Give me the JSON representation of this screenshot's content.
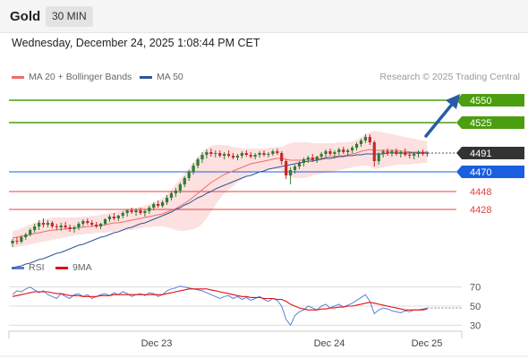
{
  "header": {
    "instrument": "Gold",
    "timeframe": "30 MIN"
  },
  "datetime": "Wednesday, December 24, 2025 1:08:44 PM CET",
  "legend": {
    "ma20_label": "MA 20 + Bollinger Bands",
    "ma50_label": "MA 50",
    "credit": "Research © 2025 Trading Central"
  },
  "rsi_legend": {
    "rsi_label": "RSI",
    "ma_label": "9MA"
  },
  "colors": {
    "up_candle": "#2e7d32",
    "down_candle": "#c62828",
    "ma20": "#f26b6b",
    "ma50": "#2f5597",
    "band_fill": "#fde0e0",
    "resistance": "#4a9e0f",
    "pivot": "#1a5fe0",
    "support": "#e84040",
    "last_price": "#333333",
    "rsi": "#5b7fd6",
    "rsi_ma": "#e01010",
    "arrow": "#2a5aa8"
  },
  "chart_data": [
    {
      "type": "candlestick",
      "title": "Gold 30 MIN",
      "x_ticks": [
        "Dec 23",
        "Dec 24",
        "Dec 25"
      ],
      "ylim": [
        4380,
        4570
      ],
      "candles": [
        [
          4390,
          4395,
          4386,
          4393
        ],
        [
          4393,
          4397,
          4389,
          4392
        ],
        [
          4392,
          4399,
          4390,
          4397
        ],
        [
          4397,
          4402,
          4394,
          4400
        ],
        [
          4400,
          4407,
          4398,
          4405
        ],
        [
          4405,
          4412,
          4402,
          4409
        ],
        [
          4409,
          4416,
          4405,
          4413
        ],
        [
          4413,
          4418,
          4408,
          4411
        ],
        [
          4411,
          4416,
          4408,
          4413
        ],
        [
          4413,
          4415,
          4407,
          4409
        ],
        [
          4409,
          4412,
          4405,
          4408
        ],
        [
          4408,
          4413,
          4404,
          4410
        ],
        [
          4410,
          4414,
          4406,
          4408
        ],
        [
          4408,
          4411,
          4403,
          4406
        ],
        [
          4406,
          4410,
          4402,
          4408
        ],
        [
          4408,
          4414,
          4405,
          4412
        ],
        [
          4412,
          4417,
          4409,
          4415
        ],
        [
          4415,
          4418,
          4411,
          4413
        ],
        [
          4413,
          4416,
          4409,
          4411
        ],
        [
          4411,
          4414,
          4407,
          4409
        ],
        [
          4409,
          4413,
          4406,
          4412
        ],
        [
          4412,
          4418,
          4410,
          4417
        ],
        [
          4417,
          4422,
          4414,
          4420
        ],
        [
          4420,
          4424,
          4416,
          4418
        ],
        [
          4418,
          4422,
          4415,
          4421
        ],
        [
          4421,
          4426,
          4418,
          4424
        ],
        [
          4424,
          4428,
          4420,
          4427
        ],
        [
          4427,
          4430,
          4423,
          4425
        ],
        [
          4425,
          4429,
          4421,
          4427
        ],
        [
          4427,
          4430,
          4422,
          4424
        ],
        [
          4424,
          4428,
          4420,
          4426
        ],
        [
          4426,
          4432,
          4423,
          4430
        ],
        [
          4430,
          4436,
          4427,
          4434
        ],
        [
          4434,
          4438,
          4430,
          4432
        ],
        [
          4432,
          4438,
          4430,
          4436
        ],
        [
          4436,
          4444,
          4433,
          4441
        ],
        [
          4441,
          4448,
          4438,
          4446
        ],
        [
          4446,
          4452,
          4442,
          4449
        ],
        [
          4449,
          4458,
          4446,
          4456
        ],
        [
          4456,
          4465,
          4453,
          4463
        ],
        [
          4463,
          4472,
          4460,
          4470
        ],
        [
          4470,
          4480,
          4467,
          4477
        ],
        [
          4477,
          4486,
          4474,
          4484
        ],
        [
          4484,
          4492,
          4480,
          4489
        ],
        [
          4489,
          4495,
          4485,
          4492
        ],
        [
          4492,
          4496,
          4487,
          4490
        ],
        [
          4490,
          4494,
          4486,
          4491
        ],
        [
          4491,
          4494,
          4486,
          4488
        ],
        [
          4488,
          4492,
          4484,
          4490
        ],
        [
          4490,
          4494,
          4486,
          4488
        ],
        [
          4488,
          4491,
          4484,
          4486
        ],
        [
          4486,
          4490,
          4483,
          4488
        ],
        [
          4488,
          4493,
          4485,
          4491
        ],
        [
          4491,
          4494,
          4487,
          4489
        ],
        [
          4489,
          4492,
          4485,
          4487
        ],
        [
          4487,
          4491,
          4484,
          4489
        ],
        [
          4489,
          4493,
          4486,
          4491
        ],
        [
          4491,
          4494,
          4487,
          4489
        ],
        [
          4489,
          4492,
          4486,
          4490
        ],
        [
          4490,
          4495,
          4488,
          4493
        ],
        [
          4493,
          4496,
          4489,
          4491
        ],
        [
          4491,
          4493,
          4478,
          4482
        ],
        [
          4482,
          4484,
          4462,
          4466
        ],
        [
          4466,
          4475,
          4456,
          4472
        ],
        [
          4472,
          4478,
          4468,
          4476
        ],
        [
          4476,
          4482,
          4473,
          4480
        ],
        [
          4480,
          4486,
          4476,
          4484
        ],
        [
          4484,
          4488,
          4480,
          4486
        ],
        [
          4486,
          4490,
          4481,
          4483
        ],
        [
          4483,
          4488,
          4480,
          4487
        ],
        [
          4487,
          4492,
          4484,
          4490
        ],
        [
          4490,
          4495,
          4486,
          4493
        ],
        [
          4493,
          4496,
          4488,
          4490
        ],
        [
          4490,
          4494,
          4485,
          4492
        ],
        [
          4492,
          4497,
          4489,
          4495
        ],
        [
          4495,
          4498,
          4490,
          4492
        ],
        [
          4492,
          4496,
          4488,
          4494
        ],
        [
          4494,
          4499,
          4491,
          4497
        ],
        [
          4497,
          4503,
          4494,
          4501
        ],
        [
          4501,
          4507,
          4498,
          4505
        ],
        [
          4505,
          4512,
          4502,
          4509
        ],
        [
          4509,
          4512,
          4500,
          4503
        ],
        [
          4503,
          4505,
          4476,
          4482
        ],
        [
          4482,
          4492,
          4478,
          4490
        ],
        [
          4490,
          4495,
          4486,
          4493
        ],
        [
          4493,
          4496,
          4488,
          4491
        ],
        [
          4491,
          4495,
          4487,
          4493
        ],
        [
          4493,
          4496,
          4488,
          4490
        ],
        [
          4490,
          4494,
          4486,
          4492
        ],
        [
          4492,
          4496,
          4487,
          4489
        ],
        [
          4489,
          4493,
          4485,
          4488
        ],
        [
          4488,
          4492,
          4484,
          4490
        ],
        [
          4490,
          4494,
          4486,
          4492
        ],
        [
          4492,
          4495,
          4488,
          4490
        ],
        [
          4490,
          4493,
          4487,
          4491
        ]
      ],
      "ma20": [
        4396,
        4397,
        4398,
        4399,
        4400,
        4401,
        4402,
        4403,
        4404,
        4405,
        4405,
        4406,
        4406,
        4407,
        4407,
        4408,
        4408,
        4409,
        4409,
        4410,
        4410,
        4411,
        4412,
        4413,
        4413,
        4414,
        4415,
        4416,
        4417,
        4418,
        4419,
        4420,
        4421,
        4422,
        4423,
        4425,
        4427,
        4429,
        4432,
        4435,
        4438,
        4442,
        4446,
        4450,
        4454,
        4458,
        4461,
        4464,
        4467,
        4469,
        4471,
        4473,
        4475,
        4477,
        4479,
        4480,
        4481,
        4482,
        4483,
        4484,
        4485,
        4485,
        4484,
        4483,
        4483,
        4483,
        4483,
        4484,
        4484,
        4485,
        4485,
        4486,
        4487,
        4487,
        4488,
        4488,
        4489,
        4490,
        4491,
        4493,
        4494,
        4495,
        4494,
        4494,
        4494,
        4494,
        4494,
        4494,
        4493,
        4493,
        4492,
        4492,
        4492,
        4492,
        4492
      ],
      "bb_upper": [
        4404,
        4405,
        4407,
        4409,
        4411,
        4413,
        4415,
        4417,
        4418,
        4419,
        4419,
        4419,
        4419,
        4419,
        4419,
        4419,
        4420,
        4420,
        4421,
        4421,
        4422,
        4423,
        4424,
        4425,
        4426,
        4427,
        4428,
        4429,
        4430,
        4431,
        4432,
        4434,
        4436,
        4438,
        4441,
        4445,
        4450,
        4456,
        4462,
        4468,
        4474,
        4480,
        4486,
        4492,
        4496,
        4499,
        4500,
        4500,
        4500,
        4499,
        4498,
        4497,
        4496,
        4496,
        4496,
        4496,
        4496,
        4496,
        4497,
        4497,
        4498,
        4498,
        4500,
        4502,
        4503,
        4503,
        4503,
        4503,
        4502,
        4502,
        4502,
        4502,
        4502,
        4502,
        4503,
        4503,
        4503,
        4504,
        4506,
        4509,
        4512,
        4514,
        4516,
        4515,
        4514,
        4513,
        4512,
        4511,
        4510,
        4509,
        4508,
        4507,
        4506,
        4505,
        4504
      ],
      "bb_lower": [
        4385,
        4386,
        4387,
        4388,
        4389,
        4390,
        4391,
        4392,
        4393,
        4394,
        4395,
        4396,
        4397,
        4398,
        4399,
        4400,
        4400,
        4401,
        4401,
        4402,
        4402,
        4402,
        4403,
        4403,
        4404,
        4404,
        4405,
        4405,
        4406,
        4407,
        4408,
        4408,
        4409,
        4409,
        4409,
        4408,
        4407,
        4405,
        4404,
        4404,
        4405,
        4406,
        4408,
        4412,
        4418,
        4425,
        4433,
        4440,
        4446,
        4450,
        4454,
        4458,
        4462,
        4466,
        4468,
        4470,
        4471,
        4472,
        4472,
        4473,
        4473,
        4472,
        4468,
        4464,
        4463,
        4463,
        4463,
        4464,
        4466,
        4467,
        4468,
        4469,
        4470,
        4471,
        4472,
        4473,
        4474,
        4475,
        4476,
        4477,
        4477,
        4476,
        4473,
        4474,
        4475,
        4476,
        4477,
        4478,
        4478,
        4478,
        4478,
        4479,
        4479,
        4480,
        4480
      ],
      "ma50": [
        4362,
        4364,
        4365,
        4367,
        4368,
        4370,
        4372,
        4373,
        4375,
        4377,
        4379,
        4380,
        4382,
        4384,
        4386,
        4388,
        4389,
        4391,
        4393,
        4395,
        4397,
        4398,
        4400,
        4402,
        4403,
        4405,
        4407,
        4408,
        4410,
        4412,
        4413,
        4415,
        4417,
        4419,
        4421,
        4423,
        4425,
        4428,
        4430,
        4433,
        4435,
        4438,
        4441,
        4443,
        4446,
        4448,
        4451,
        4453,
        4455,
        4457,
        4459,
        4461,
        4463,
        4465,
        4466,
        4468,
        4470,
        4471,
        4473,
        4474,
        4475,
        4476,
        4477,
        4478,
        4479,
        4480,
        4481,
        4482,
        4482,
        4483,
        4484,
        4485,
        4485,
        4486,
        4487,
        4487,
        4488,
        4488,
        4489,
        4489,
        4490,
        4490,
        4490,
        4490,
        4490,
        4491,
        4491,
        4491,
        4491,
        4491,
        4491,
        4491,
        4491,
        4491,
        4491
      ],
      "levels": [
        {
          "value": 4550,
          "label": "4550",
          "kind": "resistance"
        },
        {
          "value": 4525,
          "label": "4525",
          "kind": "resistance"
        },
        {
          "value": 4491,
          "label": "4491",
          "kind": "last_price"
        },
        {
          "value": 4470,
          "label": "4470",
          "kind": "pivot"
        },
        {
          "value": 4448,
          "label": "4448",
          "kind": "support"
        },
        {
          "value": 4428,
          "label": "4428",
          "kind": "support"
        }
      ]
    },
    {
      "type": "line",
      "title": "RSI",
      "ylim": [
        20,
        80
      ],
      "y_ticks": [
        "70",
        "50",
        "30"
      ],
      "series": [
        {
          "name": "RSI",
          "values": [
            62,
            66,
            65,
            68,
            70,
            67,
            64,
            66,
            62,
            60,
            58,
            63,
            60,
            58,
            62,
            63,
            60,
            62,
            58,
            60,
            62,
            63,
            61,
            64,
            62,
            65,
            63,
            60,
            62,
            63,
            61,
            64,
            63,
            60,
            62,
            66,
            68,
            69,
            71,
            70,
            69,
            68,
            67,
            66,
            64,
            62,
            60,
            58,
            60,
            61,
            58,
            60,
            57,
            59,
            56,
            58,
            60,
            57,
            55,
            58,
            56,
            50,
            36,
            30,
            40,
            44,
            46,
            50,
            48,
            46,
            50,
            52,
            48,
            50,
            52,
            49,
            51,
            53,
            56,
            59,
            62,
            55,
            42,
            46,
            48,
            47,
            45,
            44,
            43,
            45,
            44,
            46,
            46,
            47,
            48
          ]
        },
        {
          "name": "9MA",
          "values": [
            60,
            61,
            62,
            63,
            64,
            65,
            65,
            65,
            65,
            64,
            63,
            63,
            62,
            61,
            61,
            61,
            60,
            60,
            60,
            60,
            61,
            61,
            61,
            62,
            62,
            62,
            62,
            62,
            62,
            62,
            62,
            62,
            62,
            62,
            62,
            63,
            64,
            65,
            66,
            67,
            68,
            68,
            68,
            68,
            68,
            67,
            66,
            65,
            64,
            63,
            62,
            61,
            60,
            60,
            59,
            59,
            59,
            58,
            58,
            58,
            57,
            57,
            55,
            52,
            50,
            48,
            47,
            46,
            46,
            46,
            47,
            47,
            48,
            48,
            49,
            49,
            50,
            50,
            51,
            52,
            53,
            54,
            53,
            52,
            51,
            50,
            49,
            48,
            47,
            46,
            46,
            46,
            46,
            46,
            47
          ]
        }
      ]
    }
  ]
}
